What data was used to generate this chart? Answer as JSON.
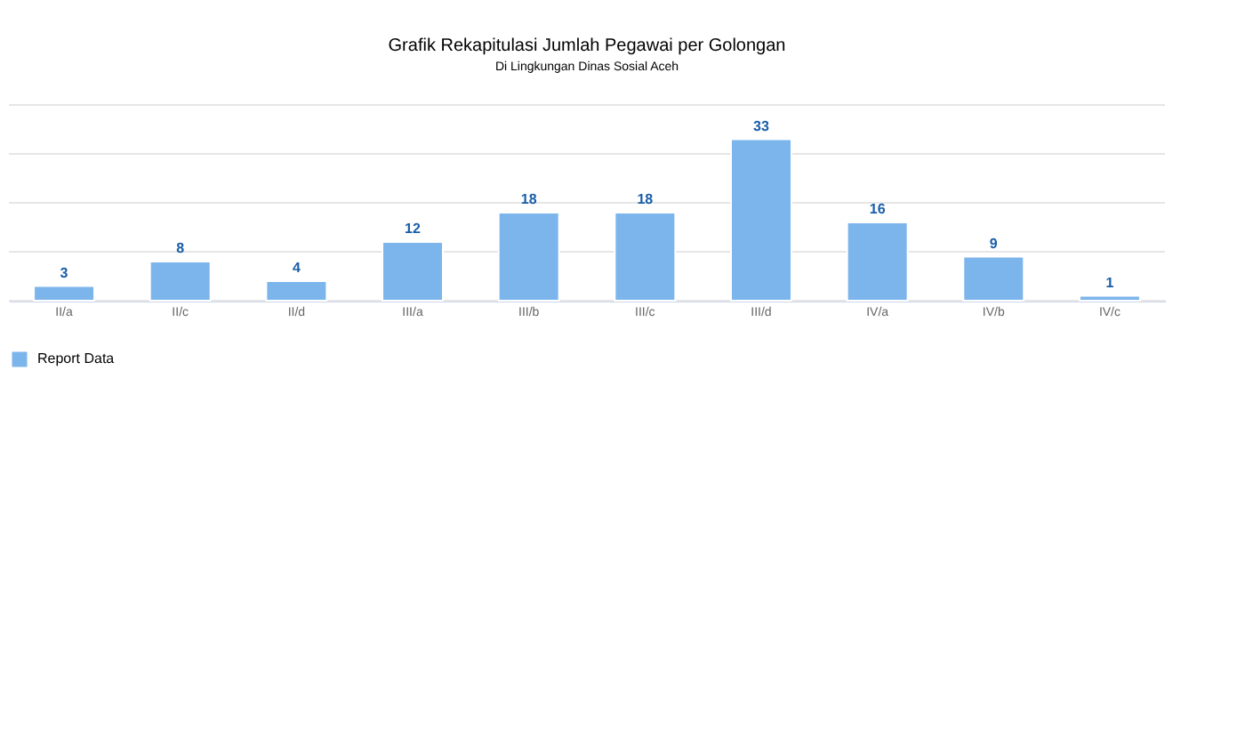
{
  "chart_data": {
    "type": "bar",
    "title": "Grafik Rekapitulasi Jumlah Pegawai per Golongan",
    "subtitle": "Di Lingkungan Dinas Sosial Aceh",
    "categories": [
      "II/a",
      "II/c",
      "II/d",
      "III/a",
      "III/b",
      "III/c",
      "III/d",
      "IV/a",
      "IV/b",
      "IV/c"
    ],
    "series": [
      {
        "name": "Report Data",
        "color": "#7cb5ec",
        "values": [
          3,
          8,
          4,
          12,
          18,
          18,
          33,
          16,
          9,
          1
        ]
      }
    ],
    "ylim": [
      0,
      40
    ],
    "yticks": [
      {
        "value": 0,
        "label": null
      },
      {
        "value": 10,
        "label": null
      },
      {
        "value": 20,
        "label": null
      },
      {
        "value": 30,
        "label": null
      },
      {
        "value": 40,
        "label": null
      }
    ],
    "tick_labels": "x",
    "grid": "y",
    "legend": "bottom",
    "data_labels": true
  }
}
